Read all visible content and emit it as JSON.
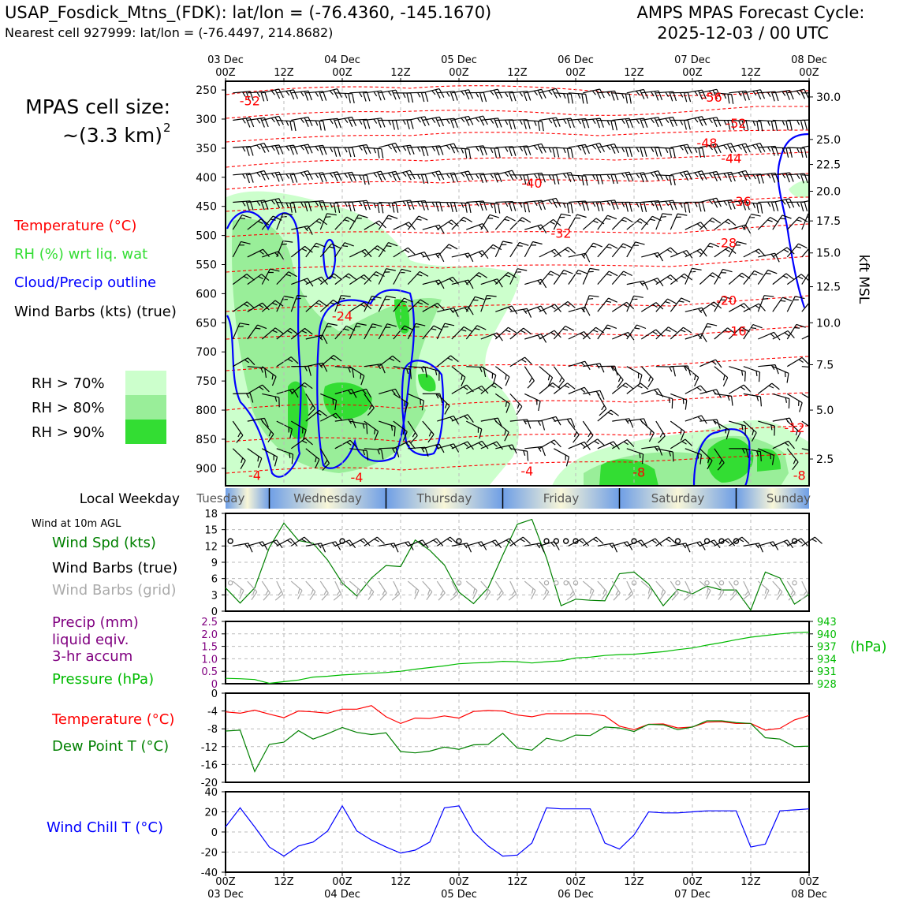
{
  "header": {
    "station": "USAP_Fosdick_Mtns_(FDK): lat/lon = (-76.4360, -145.1670)",
    "nearest": "Nearest cell 927999: lat/lon = (-76.4497, 214.8682)",
    "cycle_line1": "AMPS MPAS Forecast Cycle:",
    "cycle_line2": "2025-12-03 / 00 UTC"
  },
  "sidebar": {
    "cell_size_label": "MPAS cell size:",
    "cell_size_value": "~(3.3 km)",
    "cell_size_exp": "2",
    "legend_temperature": "Temperature (°C)",
    "legend_rh": "RH (%) wrt liq. wat",
    "legend_cloud": "Cloud/Precip outline",
    "legend_wind": "Wind Barbs (kts) (true)",
    "rh_levels": [
      {
        "label": "RH > 70%",
        "color": "#ccffcc"
      },
      {
        "label": "RH > 80%",
        "color": "#99ee99"
      },
      {
        "label": "RH > 90%",
        "color": "#33dd33"
      }
    ],
    "local_weekday": "Local Weekday",
    "wind_10m": "Wind at 10m AGL",
    "wind_spd": "Wind Spd (kts)",
    "wind_barbs_true": "Wind Barbs (true)",
    "wind_barbs_grid": "Wind Barbs (grid)",
    "precip_l1": "Precip (mm)",
    "precip_l2": "liquid eqiv.",
    "precip_l3": "3-hr accum",
    "pressure": "Pressure (hPa)",
    "temperature": "Temperature (°C)",
    "dewpoint": "Dew Point T (°C)",
    "windchill": "Wind Chill T (°C)"
  },
  "colors": {
    "temperature": "#ff0000",
    "rh_text": "#33dd33",
    "cloud": "#0000ff",
    "wind_spd": "#008000",
    "grid_barbs": "#aaaaaa",
    "precip": "#800080",
    "pressure": "#00bb00",
    "dewpoint": "#008000",
    "windchill": "#0000ff"
  },
  "chart_data": {
    "type": "line",
    "time_ticks": [
      {
        "hour": 0,
        "top": "03 Dec",
        "bottom": "00Z"
      },
      {
        "hour": 12,
        "top": "",
        "bottom": "12Z"
      },
      {
        "hour": 24,
        "top": "04 Dec",
        "bottom": "00Z"
      },
      {
        "hour": 36,
        "top": "",
        "bottom": "12Z"
      },
      {
        "hour": 48,
        "top": "05 Dec",
        "bottom": "00Z"
      },
      {
        "hour": 60,
        "top": "",
        "bottom": "12Z"
      },
      {
        "hour": 72,
        "top": "06 Dec",
        "bottom": "00Z"
      },
      {
        "hour": 84,
        "top": "",
        "bottom": "12Z"
      },
      {
        "hour": 96,
        "top": "07 Dec",
        "bottom": "00Z"
      },
      {
        "hour": 108,
        "top": "",
        "bottom": "12Z"
      },
      {
        "hour": 120,
        "top": "08 Dec",
        "bottom": "00Z"
      }
    ],
    "cross_section": {
      "pressure_ticks": [
        250,
        300,
        350,
        400,
        450,
        500,
        550,
        600,
        650,
        700,
        750,
        800,
        850,
        900
      ],
      "pressure_range": [
        235,
        930
      ],
      "kft_ticks": [
        {
          "p": 262,
          "label": "30.0"
        },
        {
          "p": 335,
          "label": "25.0"
        },
        {
          "p": 378,
          "label": "22.5"
        },
        {
          "p": 424,
          "label": "20.0"
        },
        {
          "p": 475,
          "label": "17.5"
        },
        {
          "p": 530,
          "label": "15.0"
        },
        {
          "p": 588,
          "label": "12.5"
        },
        {
          "p": 650,
          "label": "10.0"
        },
        {
          "p": 722,
          "label": "7.5"
        },
        {
          "p": 800,
          "label": "5.0"
        },
        {
          "p": 884,
          "label": "2.5"
        }
      ],
      "kft_label": "kft MSL",
      "temp_labels": [
        {
          "hour": 5,
          "p": 268,
          "text": "-52"
        },
        {
          "hour": 100,
          "p": 262,
          "text": "-56"
        },
        {
          "hour": 105,
          "p": 307,
          "text": "-52"
        },
        {
          "hour": 99,
          "p": 341,
          "text": "-48"
        },
        {
          "hour": 104,
          "p": 367,
          "text": "-44"
        },
        {
          "hour": 63,
          "p": 410,
          "text": "-40"
        },
        {
          "hour": 106,
          "p": 441,
          "text": "-36"
        },
        {
          "hour": 69,
          "p": 496,
          "text": "-32"
        },
        {
          "hour": 103,
          "p": 512,
          "text": "-28"
        },
        {
          "hour": 24,
          "p": 638,
          "text": "-24"
        },
        {
          "hour": 103,
          "p": 611,
          "text": "-20"
        },
        {
          "hour": 105,
          "p": 664,
          "text": "-16"
        },
        {
          "hour": 117,
          "p": 830,
          "text": "-12"
        },
        {
          "hour": 85,
          "p": 906,
          "text": "-8"
        },
        {
          "hour": 118,
          "p": 912,
          "text": "-8"
        },
        {
          "hour": 6,
          "p": 912,
          "text": "-4"
        },
        {
          "hour": 27,
          "p": 915,
          "text": "-4"
        },
        {
          "hour": 62,
          "p": 904,
          "text": "-4"
        }
      ]
    },
    "weekday": {
      "labels": [
        {
          "hour": -1,
          "text": "Tuesday"
        },
        {
          "hour": 21,
          "text": "Wednesday"
        },
        {
          "hour": 45,
          "text": "Thursday"
        },
        {
          "hour": 69,
          "text": "Friday"
        },
        {
          "hour": 93,
          "text": "Saturday"
        },
        {
          "hour": 117,
          "text": "Sunday"
        }
      ],
      "dividers": [
        9,
        33,
        57,
        81,
        105
      ]
    },
    "wind_panel": {
      "ylim": [
        0,
        18
      ],
      "yticks": [
        0,
        3,
        6,
        9,
        12,
        15,
        18
      ],
      "hours": [
        0,
        3,
        6,
        9,
        12,
        15,
        18,
        21,
        24,
        27,
        30,
        33,
        36,
        39,
        42,
        45,
        48,
        51,
        54,
        57,
        60,
        63,
        66,
        69,
        72,
        75,
        78,
        81,
        84,
        87,
        90,
        93,
        96,
        99,
        102,
        105,
        108,
        111,
        114,
        117,
        120
      ],
      "speed": [
        4.3,
        1.5,
        4.3,
        11.7,
        16.2,
        13.0,
        12.5,
        9.4,
        5.2,
        2.8,
        6.1,
        8.4,
        8.2,
        13.1,
        11.2,
        8.5,
        3.5,
        1.4,
        4.3,
        10.3,
        16.0,
        16.9,
        9.8,
        1.0,
        2.2,
        2.0,
        1.9,
        6.9,
        7.2,
        5.0,
        1.0,
        4.0,
        3.2,
        4.6,
        3.9,
        3.9,
        0.2,
        7.2,
        6.1,
        1.3,
        3.1
      ],
      "calm": [
        1,
        24,
        48,
        66,
        68,
        70,
        72,
        84,
        93,
        99,
        102,
        105,
        117
      ]
    },
    "precip_panel": {
      "ylim": [
        0,
        2.5
      ],
      "yticks": [
        0,
        0.5,
        1.0,
        1.5,
        2.0,
        2.5
      ],
      "ytick_labels": [
        "0",
        "0.5",
        "1.0",
        "1.5",
        "2.0",
        "2.5"
      ],
      "pressure_ylim": [
        928,
        943
      ],
      "pressure_ticks": [
        928,
        931,
        934,
        937,
        940,
        943
      ],
      "pressure_unit": "(hPa)",
      "pressure_hours": [
        0,
        3,
        6,
        9,
        12,
        15,
        18,
        21,
        24,
        27,
        30,
        33,
        36,
        39,
        42,
        45,
        48,
        51,
        54,
        57,
        60,
        63,
        66,
        69,
        72,
        75,
        78,
        81,
        84,
        87,
        90,
        93,
        96,
        99,
        102,
        105,
        108,
        111,
        114,
        117,
        120
      ],
      "pressure": [
        929.3,
        929.2,
        929.0,
        928.1,
        928.5,
        928.9,
        929.6,
        929.8,
        930.1,
        930.3,
        930.5,
        930.7,
        931.0,
        931.5,
        931.9,
        932.3,
        932.8,
        933.0,
        933.1,
        933.4,
        933.3,
        933.0,
        933.3,
        933.5,
        934.2,
        934.4,
        934.8,
        935.0,
        935.1,
        935.4,
        935.7,
        936.2,
        936.6,
        937.3,
        937.9,
        938.6,
        939.2,
        939.6,
        940.0,
        940.3,
        940.4
      ],
      "precip": []
    },
    "temp_panel": {
      "ylim": [
        -20,
        0
      ],
      "yticks": [
        0,
        -4,
        -8,
        -12,
        -16,
        -20
      ],
      "hours": [
        0,
        3,
        6,
        9,
        12,
        15,
        18,
        21,
        24,
        27,
        30,
        33,
        36,
        39,
        42,
        45,
        48,
        51,
        54,
        57,
        60,
        63,
        66,
        69,
        72,
        75,
        78,
        81,
        84,
        87,
        90,
        93,
        96,
        99,
        102,
        105,
        108,
        111,
        114,
        117,
        120
      ],
      "temperature": [
        -4.2,
        -4.5,
        -3.8,
        -4.7,
        -5.5,
        -4.0,
        -4.2,
        -4.5,
        -3.6,
        -3.6,
        -2.8,
        -5.3,
        -6.8,
        -5.6,
        -5.7,
        -5.1,
        -5.6,
        -4.1,
        -3.9,
        -4.0,
        -4.9,
        -5.3,
        -4.6,
        -4.6,
        -4.6,
        -4.6,
        -5.1,
        -7.4,
        -8.2,
        -7.0,
        -6.9,
        -7.8,
        -7.6,
        -6.5,
        -6.4,
        -6.8,
        -6.8,
        -8.3,
        -7.9,
        -6.0,
        -5.0
      ],
      "dewpoint": [
        -8.5,
        -8.3,
        -17.6,
        -11.5,
        -11.0,
        -8.4,
        -10.3,
        -9.1,
        -7.7,
        -8.8,
        -9.3,
        -8.9,
        -13.1,
        -13.4,
        -13.0,
        -12.1,
        -12.6,
        -11.6,
        -11.5,
        -9.0,
        -12.3,
        -12.8,
        -10.1,
        -10.8,
        -9.4,
        -9.5,
        -7.6,
        -7.8,
        -8.6,
        -7.0,
        -7.1,
        -8.2,
        -7.6,
        -6.2,
        -6.2,
        -6.6,
        -6.8,
        -10.0,
        -10.3,
        -12.0,
        -11.9
      ]
    },
    "chill_panel": {
      "ylim": [
        -40,
        40
      ],
      "yticks": [
        40,
        20,
        0,
        -20,
        -40
      ],
      "hours": [
        0,
        3,
        6,
        9,
        12,
        15,
        18,
        21,
        24,
        27,
        30,
        33,
        36,
        39,
        42,
        45,
        48,
        51,
        54,
        57,
        60,
        63,
        66,
        69,
        72,
        75,
        78,
        81,
        84,
        87,
        90,
        93,
        96,
        99,
        102,
        105,
        108,
        111,
        114,
        117,
        120
      ],
      "windchill": [
        5,
        24,
        5,
        -15,
        -24,
        -14,
        -10,
        1,
        26,
        1,
        -8,
        -15,
        -21,
        -18,
        -10,
        24,
        26,
        0,
        -14,
        -24,
        -23,
        -11,
        24,
        23,
        23,
        23,
        -11,
        -17,
        -3,
        20,
        19,
        19,
        20,
        21,
        21,
        21,
        -15,
        -12,
        21,
        22,
        23
      ]
    }
  }
}
